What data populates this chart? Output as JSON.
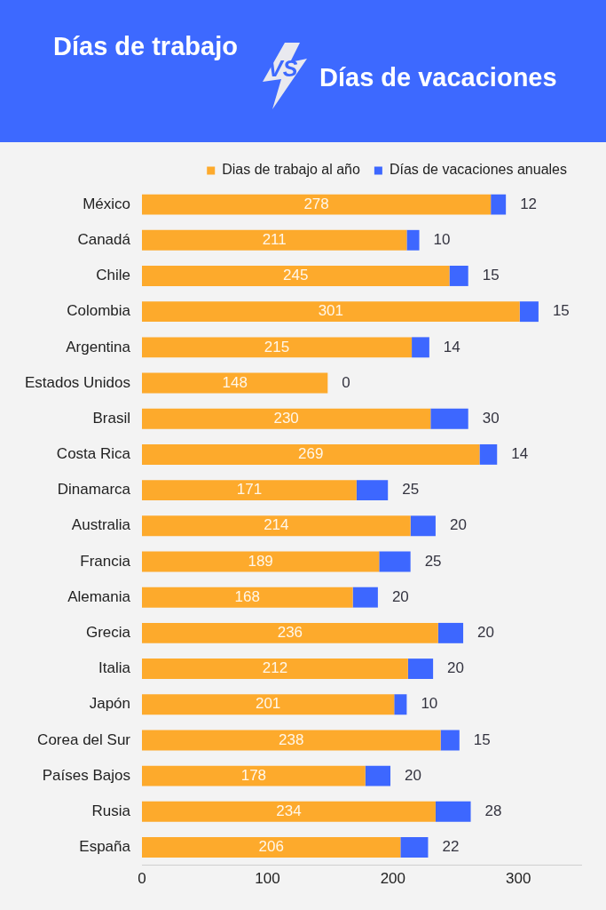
{
  "chart_data": {
    "type": "bar",
    "orientation": "horizontal",
    "stacked": true,
    "title": "Días de trabajo",
    "subtitle": "Días de vacaciones",
    "annotations": [
      "VS"
    ],
    "categories": [
      "México",
      "Canadá",
      "Chile",
      "Colombia",
      "Argentina",
      "Estados Unidos",
      "Brasil",
      "Costa Rica",
      "Dinamarca",
      "Australia",
      "Francia",
      "Alemania",
      "Grecia",
      "Italia",
      "Japón",
      "Corea del Sur",
      "Países Bajos",
      "Rusia",
      "España"
    ],
    "series": [
      {
        "name": "Dias de trabajo al año",
        "color": "#fdaa2c",
        "values": [
          278,
          211,
          245,
          301,
          215,
          148,
          230,
          269,
          171,
          214,
          189,
          168,
          236,
          212,
          201,
          238,
          178,
          234,
          206
        ]
      },
      {
        "name": "Días de vacaciones anuales",
        "color": "#3d67ff",
        "values": [
          12,
          10,
          15,
          15,
          14,
          0,
          30,
          14,
          25,
          20,
          25,
          20,
          20,
          20,
          10,
          15,
          20,
          28,
          22
        ]
      }
    ],
    "xlim": [
      0,
      350
    ],
    "xticks": [
      0,
      100,
      200,
      300
    ],
    "grid": false,
    "legend": "top right",
    "data_labels": true
  }
}
